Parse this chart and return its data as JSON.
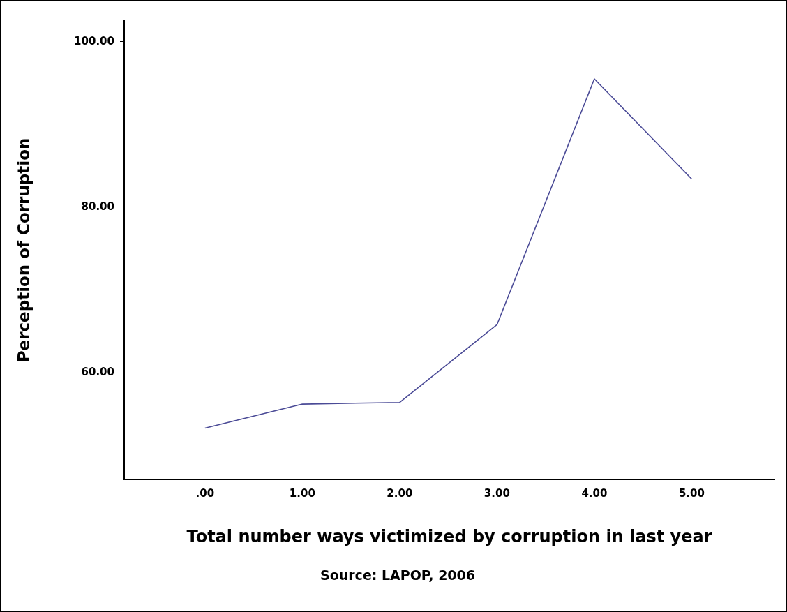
{
  "chart_data": {
    "type": "line",
    "xlabel": "Total number ways victimized by corruption in last year",
    "ylabel": "Perception of Corruption",
    "x": [
      0,
      1,
      2,
      3,
      4,
      5
    ],
    "series": [
      {
        "color": "#4a4a96",
        "values": [
          53.3,
          56.2,
          56.4,
          65.8,
          95.5,
          83.4
        ]
      }
    ],
    "xlim": [
      -0.83,
      5.85
    ],
    "xticks": [
      {
        "value": 0,
        "label": ".00"
      },
      {
        "value": 1,
        "label": "1.00"
      },
      {
        "value": 2,
        "label": "2.00"
      },
      {
        "value": 3,
        "label": "3.00"
      },
      {
        "value": 4,
        "label": "4.00"
      },
      {
        "value": 5,
        "label": "5.00"
      }
    ],
    "ylim": [
      47.1,
      102.5
    ],
    "yticks": [
      {
        "value": 60,
        "label": "60.00"
      },
      {
        "value": 80,
        "label": "80.00"
      },
      {
        "value": 100,
        "label": "100.00"
      }
    ],
    "grid": false,
    "legend": false,
    "marker": "none",
    "line_style": "solid",
    "annotations": [
      "Source: LAPOP, 2006"
    ]
  }
}
